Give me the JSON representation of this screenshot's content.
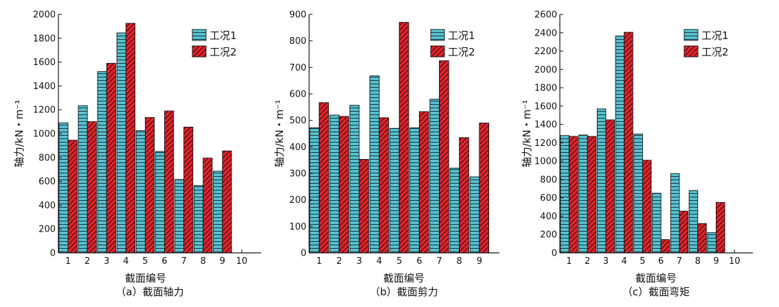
{
  "colors": {
    "series1": "#56c1cf",
    "series2": "#e0242c",
    "hatch1": "#1a3340",
    "hatch2": "#3a0a0a"
  },
  "chart_data": [
    {
      "type": "bar",
      "caption": "（a）截面轴力",
      "xlabel": "截面编号",
      "ylabel": "轴力/kN・m⁻¹",
      "categories": [
        1,
        2,
        3,
        4,
        5,
        6,
        7,
        8,
        9
      ],
      "xticks": [
        "1",
        "2",
        "3",
        "4",
        "5",
        "6",
        "7",
        "8",
        "9",
        "10"
      ],
      "ylim": [
        0,
        2000
      ],
      "yticks": [
        0,
        200,
        400,
        600,
        800,
        1000,
        1200,
        1400,
        1600,
        1800,
        2000
      ],
      "series": [
        {
          "name": "工况1",
          "values": [
            1090,
            1235,
            1520,
            1845,
            1025,
            850,
            615,
            565,
            685
          ]
        },
        {
          "name": "工况2",
          "values": [
            945,
            1100,
            1590,
            1925,
            1135,
            1190,
            1055,
            795,
            855
          ]
        }
      ],
      "legend": "top-right"
    },
    {
      "type": "bar",
      "caption": "（b）截面剪力",
      "xlabel": "截面编号",
      "ylabel": "轴力/kN・m⁻¹",
      "categories": [
        1,
        2,
        3,
        4,
        5,
        6,
        7,
        8,
        9
      ],
      "xticks": [
        "1",
        "2",
        "3",
        "4",
        "5",
        "6",
        "7",
        "8",
        "9"
      ],
      "ylim": [
        0,
        900
      ],
      "yticks": [
        0,
        100,
        200,
        300,
        400,
        500,
        600,
        700,
        800,
        900
      ],
      "series": [
        {
          "name": "工况1",
          "values": [
            472,
            520,
            557,
            668,
            470,
            472,
            580,
            320,
            287
          ]
        },
        {
          "name": "工况2",
          "values": [
            567,
            515,
            353,
            510,
            870,
            533,
            725,
            435,
            490
          ]
        }
      ],
      "legend": "top-right"
    },
    {
      "type": "bar",
      "caption": "（c）截面弯矩",
      "xlabel": "截面编号",
      "ylabel": "轴力/kN・m⁻¹",
      "categories": [
        1,
        2,
        3,
        4,
        5,
        6,
        7,
        8,
        9
      ],
      "xticks": [
        "1",
        "2",
        "3",
        "4",
        "5",
        "6",
        "7",
        "8",
        "9",
        "10"
      ],
      "ylim": [
        0,
        2600
      ],
      "yticks": [
        0,
        200,
        400,
        600,
        800,
        1000,
        1200,
        1400,
        1600,
        1800,
        2000,
        2200,
        2400,
        2600
      ],
      "series": [
        {
          "name": "工况1",
          "values": [
            1280,
            1285,
            1570,
            2365,
            1295,
            650,
            865,
            680,
            220
          ]
        },
        {
          "name": "工况2",
          "values": [
            1270,
            1270,
            1450,
            2405,
            1010,
            145,
            455,
            320,
            550
          ]
        }
      ],
      "legend": "top-right"
    }
  ]
}
